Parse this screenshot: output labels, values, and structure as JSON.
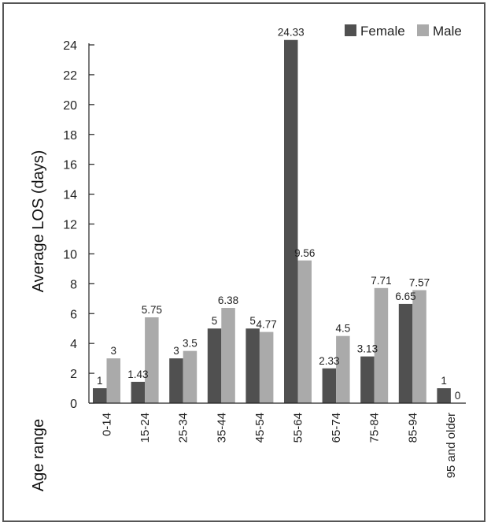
{
  "chart_data": {
    "type": "bar",
    "title": "",
    "xlabel": "Age range",
    "ylabel": "Average LOS (days)",
    "ylim": [
      0,
      24
    ],
    "yticks": [
      0,
      2,
      4,
      6,
      8,
      10,
      12,
      14,
      16,
      18,
      20,
      22,
      24
    ],
    "categories": [
      "0-14",
      "15-24",
      "25-34",
      "35-44",
      "45-54",
      "55-64",
      "65-74",
      "75-84",
      "85-94",
      "95 and older"
    ],
    "series": [
      {
        "name": "Female",
        "color": "#505050",
        "values": [
          1,
          1.43,
          3,
          5,
          5,
          24.33,
          2.33,
          3.13,
          6.65,
          1
        ],
        "labels": [
          "1",
          "1.43",
          "3",
          "5",
          "5",
          "24.33",
          "2.33",
          "3.13",
          "6.65",
          "1"
        ]
      },
      {
        "name": "Male",
        "color": "#aaaaaa",
        "values": [
          3,
          5.75,
          3.5,
          6.38,
          4.77,
          9.56,
          4.5,
          7.71,
          7.57,
          0
        ],
        "labels": [
          "3",
          "5.75",
          "3.5",
          "6.38",
          "4.77",
          "9.56",
          "4.5",
          "7.71",
          "7.57",
          "0"
        ]
      }
    ],
    "grid": false,
    "legend_position": "top-right"
  }
}
